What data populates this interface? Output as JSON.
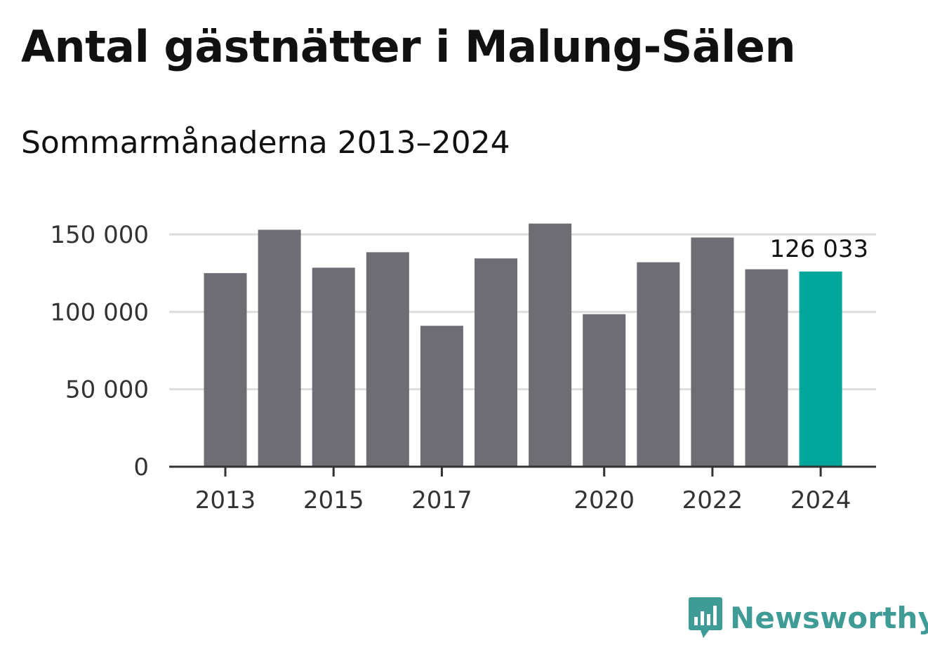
{
  "title": "Antal gästnätter i Malung-Sälen",
  "subtitle": "Sommarmånaderna 2013–2024",
  "brand": "Newsworthy",
  "colors": {
    "bar": "#6e6d73",
    "highlight": "#00a69a",
    "grid": "#dddddd",
    "axis": "#333333",
    "brand": "#3f9b96"
  },
  "chart_data": {
    "type": "bar",
    "title": "Antal gästnätter i Malung-Sälen",
    "subtitle": "Sommarmånaderna 2013–2024",
    "categories": [
      "2013",
      "2014",
      "2015",
      "2016",
      "2017",
      "2018",
      "2019",
      "2020",
      "2021",
      "2022",
      "2023",
      "2024"
    ],
    "values": [
      125000,
      153000,
      128500,
      138500,
      91000,
      134500,
      157000,
      98500,
      132000,
      148000,
      127500,
      126033
    ],
    "highlight_index": 11,
    "data_label": "126 033",
    "ylim": [
      0,
      150000
    ],
    "yticks": [
      0,
      50000,
      100000,
      150000
    ],
    "ytick_labels": [
      "0",
      "50 000",
      "100 000",
      "150 000"
    ],
    "xtick_labels": [
      "2013",
      "2015",
      "2017",
      "2020",
      "2022",
      "2024"
    ],
    "xlabel": "",
    "ylabel": "",
    "grid": true,
    "legend": "none"
  }
}
